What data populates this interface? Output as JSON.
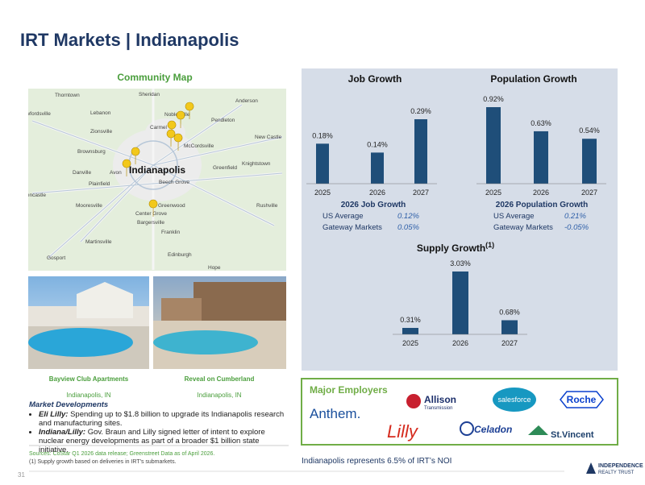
{
  "title": "IRT Markets | Indianapolis",
  "map": {
    "title": "Community Map",
    "places": [
      "Thorntown",
      "Sheridan",
      "Crawfordsville",
      "Lebanon",
      "Anderson",
      "Noblesville",
      "Pendleton",
      "Zionsville",
      "Carmel",
      "McCordsville",
      "New Castle",
      "Brownsburg",
      "Indianapolis",
      "Greenfield",
      "Knightstown",
      "Danville",
      "Avon",
      "Plainfield",
      "Beech Grove",
      "Greencastle",
      "Mooresville",
      "Greenwood",
      "Rushville",
      "Center Grove",
      "Bargersville",
      "Franklin",
      "Martinsville",
      "Edinburgh",
      "Gosport",
      "Hope"
    ]
  },
  "properties": [
    {
      "name": "Bayview Club Apartments",
      "location": "Indianapolis, IN"
    },
    {
      "name": "Reveal on Cumberland",
      "location": "Indianapolis, IN"
    }
  ],
  "market_developments": {
    "heading": "Market Developments",
    "items": [
      {
        "lead": "Eli Lilly:",
        "text": "Spending up to $1.8 billion to upgrade its Indianapolis research and manufacturing sites."
      },
      {
        "lead": "Indiana/Lilly:",
        "text": "Gov. Braun and Lilly signed letter of intent to explore nuclear energy developments as part of a broader $1 billion state initiative."
      }
    ]
  },
  "sources": "Sources: CoStar Q1 2026 data release; Greenstreet Data as of April 2026.",
  "footnote": "(1)  Supply growth based on deliveries in IRT's submarkets.",
  "chart_data": [
    {
      "type": "bar",
      "title": "Job Growth",
      "categories": [
        "2025",
        "2026",
        "2027"
      ],
      "values": [
        0.18,
        0.14,
        0.29
      ],
      "value_labels": [
        "0.18%",
        "0.14%",
        "0.29%"
      ],
      "color": "#1f4e79"
    },
    {
      "type": "bar",
      "title": "Population Growth",
      "categories": [
        "2025",
        "2026",
        "2027"
      ],
      "values": [
        0.92,
        0.63,
        0.54
      ],
      "value_labels": [
        "0.92%",
        "0.63%",
        "0.54%"
      ],
      "color": "#1f4e79"
    },
    {
      "type": "bar",
      "title": "Supply Growth",
      "title_note": "(1)",
      "categories": [
        "2025",
        "2026",
        "2027"
      ],
      "values": [
        0.31,
        3.03,
        0.68
      ],
      "value_labels": [
        "0.31%",
        "3.03%",
        "0.68%"
      ],
      "color": "#1f4e79"
    }
  ],
  "stats": [
    {
      "title": "2026 Job Growth",
      "rows": [
        {
          "label": "US Average",
          "value": "0.12%"
        },
        {
          "label": "Gateway Markets",
          "value": "0.05%"
        }
      ]
    },
    {
      "title": "2026 Population Growth",
      "rows": [
        {
          "label": "US Average",
          "value": "0.21%"
        },
        {
          "label": "Gateway Markets",
          "value": "-0.05%"
        }
      ]
    }
  ],
  "employers": {
    "title": "Major Employers",
    "names": [
      "Anthem.",
      "Allison",
      "Transmission",
      "salesforce",
      "Roche",
      "Lilly",
      "Celadon",
      "St.Vincent"
    ]
  },
  "note": "Indianapolis represents 6.5% of IRT’s NOI",
  "page_number": 31,
  "logo": {
    "line1": "INDEPENDENCE",
    "line2": "REALTY TRUST"
  }
}
